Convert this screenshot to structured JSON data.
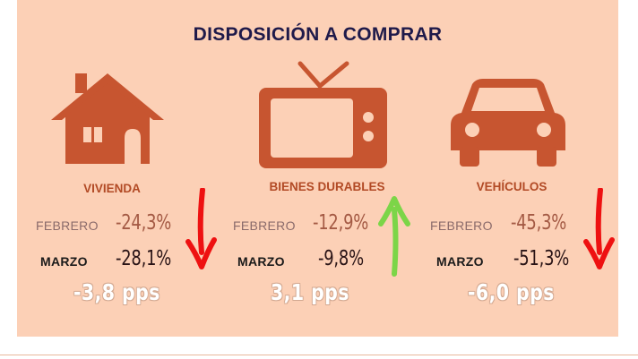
{
  "title": "DISPOSICIÓN A COMPRAR",
  "colors": {
    "panel": "#fcd0b6",
    "icon": "#c75530",
    "label": "#b24a25",
    "title": "#1f1a4a",
    "down_arrow": "#ee1111",
    "up_arrow": "#7cd548"
  },
  "categories": [
    {
      "label": "VIVIENDA",
      "icon": "house-icon",
      "feb_label": "FEBRERO",
      "feb_value": "-24,3%",
      "mar_label": "MARZO",
      "mar_value": "-28,1%",
      "change": "-3,8 pps",
      "trend": "down"
    },
    {
      "label": "BIENES DURABLES",
      "icon": "tv-icon",
      "feb_label": "FEBRERO",
      "feb_value": "-12,9%",
      "mar_label": "MARZO",
      "mar_value": "-9,8%",
      "change": "3,1 pps",
      "trend": "up"
    },
    {
      "label": "VEHÍCULOS",
      "icon": "car-icon",
      "feb_label": "FEBRERO",
      "feb_value": "-45,3%",
      "mar_label": "MARZO",
      "mar_value": "-51,3%",
      "change": "-6,0 pps",
      "trend": "down"
    }
  ]
}
